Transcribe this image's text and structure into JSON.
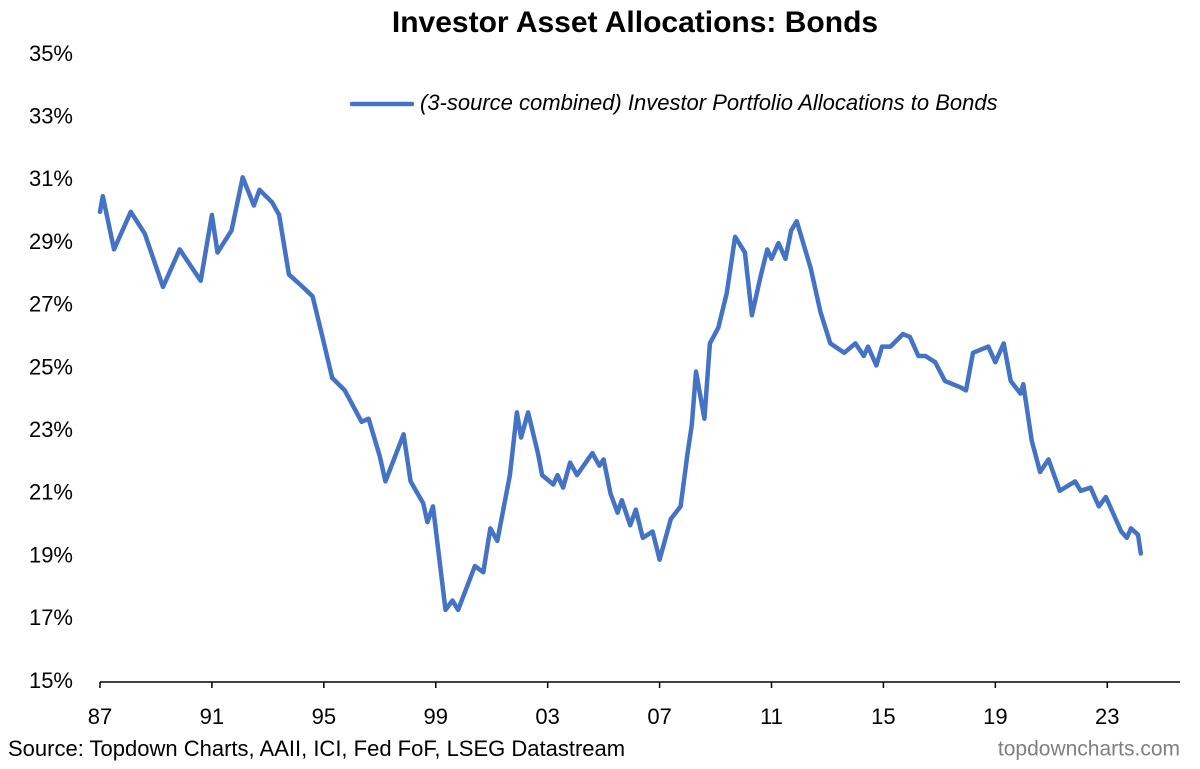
{
  "chart_data": {
    "type": "line",
    "title": "Investor Asset Allocations: Bonds",
    "source": "Source: Topdown Charts, AAII, ICI, Fed FoF, LSEG Datastream",
    "watermark": "topdowncharts.com",
    "legend": "top",
    "grid": false,
    "xlim": [
      1987,
      2025.6
    ],
    "xticks": [
      {
        "value": 1987,
        "label": "87"
      },
      {
        "value": 1991,
        "label": "91"
      },
      {
        "value": 1995,
        "label": "95"
      },
      {
        "value": 1999,
        "label": "99"
      },
      {
        "value": 2003,
        "label": "03"
      },
      {
        "value": 2007,
        "label": "07"
      },
      {
        "value": 2011,
        "label": "11"
      },
      {
        "value": 2015,
        "label": "15"
      },
      {
        "value": 2019,
        "label": "19"
      },
      {
        "value": 2023,
        "label": "23"
      }
    ],
    "ylim": [
      15,
      35
    ],
    "yticks": [
      {
        "value": 15,
        "label": "15%"
      },
      {
        "value": 17,
        "label": "17%"
      },
      {
        "value": 19,
        "label": "19%"
      },
      {
        "value": 21,
        "label": "21%"
      },
      {
        "value": 23,
        "label": "23%"
      },
      {
        "value": 25,
        "label": "25%"
      },
      {
        "value": 27,
        "label": "27%"
      },
      {
        "value": 29,
        "label": "29%"
      },
      {
        "value": 31,
        "label": "31%"
      },
      {
        "value": 33,
        "label": "33%"
      },
      {
        "value": 35,
        "label": "35%"
      }
    ],
    "x": [
      1987.0,
      1987.1,
      1987.5,
      1988.1,
      1988.6,
      1989.25,
      1989.85,
      1990.6,
      1991.0,
      1991.2,
      1991.7,
      1992.1,
      1992.5,
      1992.7,
      1993.15,
      1993.4,
      1993.75,
      1994.25,
      1994.6,
      1994.9,
      1995.3,
      1995.75,
      1996.35,
      1996.6,
      1997.0,
      1997.2,
      1997.85,
      1998.1,
      1998.55,
      1998.7,
      1998.9,
      1999.35,
      1999.6,
      1999.8,
      2000.4,
      2000.7,
      2000.95,
      2001.2,
      2001.65,
      2001.9,
      2002.05,
      2002.3,
      2002.65,
      2002.8,
      2003.2,
      2003.35,
      2003.55,
      2003.8,
      2004.05,
      2004.6,
      2004.85,
      2005.0,
      2005.25,
      2005.5,
      2005.65,
      2005.95,
      2006.15,
      2006.4,
      2006.75,
      2007.0,
      2007.4,
      2007.75,
      2008.0,
      2008.15,
      2008.3,
      2008.6,
      2008.8,
      2009.1,
      2009.4,
      2009.7,
      2010.05,
      2010.3,
      2010.6,
      2010.85,
      2011.0,
      2011.25,
      2011.5,
      2011.7,
      2011.9,
      2012.4,
      2012.75,
      2013.1,
      2013.6,
      2014.0,
      2014.3,
      2014.45,
      2014.75,
      2014.95,
      2015.25,
      2015.7,
      2015.95,
      2016.25,
      2016.5,
      2016.85,
      2017.2,
      2017.75,
      2017.95,
      2018.2,
      2018.75,
      2019.0,
      2019.3,
      2019.55,
      2019.9,
      2020.0,
      2020.3,
      2020.6,
      2020.9,
      2021.3,
      2021.85,
      2022.05,
      2022.4,
      2022.7,
      2022.95,
      2023.5,
      2023.7,
      2023.85,
      2024.1,
      2024.2
    ],
    "series": [
      {
        "name": "(3-source combined) Investor Portfolio Allocations to Bonds",
        "color": "#4472c4",
        "values": [
          30.0,
          30.5,
          28.8,
          30.0,
          29.3,
          27.6,
          28.8,
          27.8,
          29.9,
          28.7,
          29.4,
          31.1,
          30.2,
          30.7,
          30.3,
          29.9,
          28.0,
          27.6,
          27.3,
          26.2,
          24.7,
          24.3,
          23.3,
          23.4,
          22.2,
          21.4,
          22.9,
          21.4,
          20.7,
          20.1,
          20.6,
          17.3,
          17.6,
          17.3,
          18.7,
          18.5,
          19.9,
          19.5,
          21.6,
          23.6,
          22.8,
          23.6,
          22.3,
          21.6,
          21.3,
          21.6,
          21.2,
          22.0,
          21.6,
          22.3,
          21.9,
          22.1,
          21.0,
          20.4,
          20.8,
          20.0,
          20.5,
          19.6,
          19.8,
          18.9,
          20.2,
          20.6,
          22.3,
          23.2,
          24.9,
          23.4,
          25.8,
          26.3,
          27.4,
          29.2,
          28.7,
          26.7,
          27.9,
          28.8,
          28.5,
          29.0,
          28.5,
          29.4,
          29.7,
          28.2,
          26.8,
          25.8,
          25.5,
          25.8,
          25.4,
          25.7,
          25.1,
          25.7,
          25.7,
          26.1,
          26.0,
          25.4,
          25.4,
          25.2,
          24.6,
          24.4,
          24.3,
          25.5,
          25.7,
          25.2,
          25.8,
          24.6,
          24.2,
          24.5,
          22.7,
          21.7,
          22.1,
          21.1,
          21.4,
          21.1,
          21.2,
          20.6,
          20.9,
          19.8,
          19.6,
          19.9,
          19.7,
          19.1
        ]
      }
    ]
  }
}
